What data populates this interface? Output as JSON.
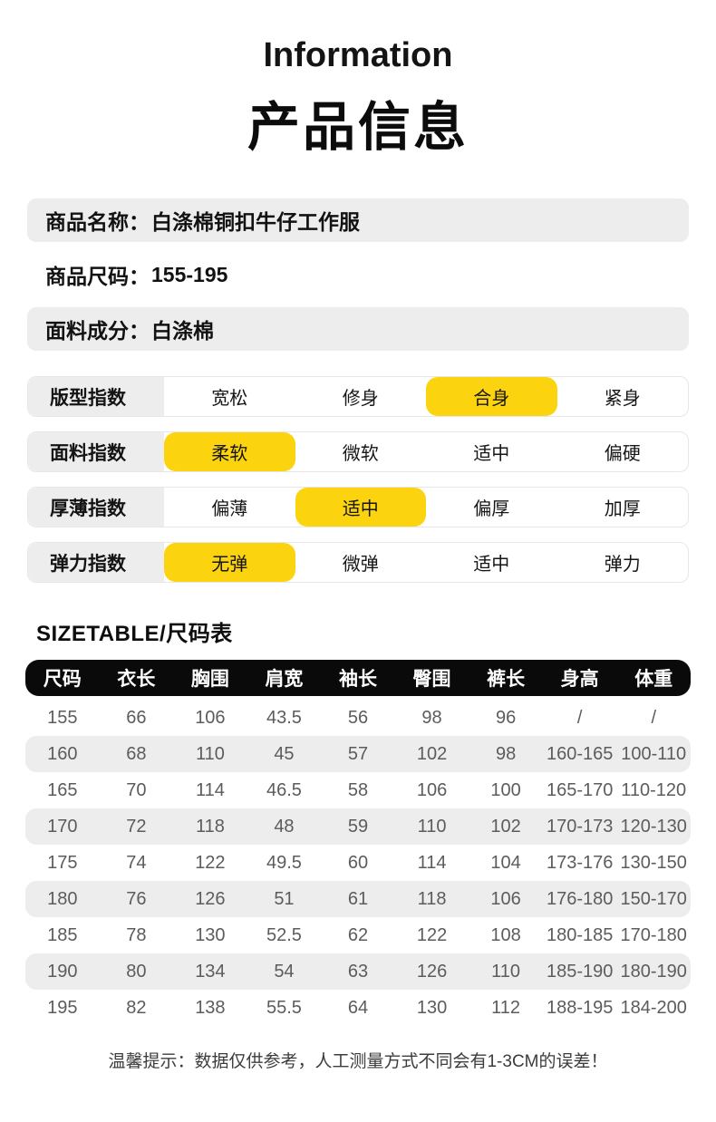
{
  "header": {
    "title_en": "Information",
    "title_cn": "产品信息"
  },
  "product_info": [
    {
      "label": "商品名称：",
      "value": "白涤棉铜扣牛仔工作服"
    },
    {
      "label": "商品尺码：",
      "value": "155-195"
    },
    {
      "label": "面料成分：",
      "value": "白涤棉"
    }
  ],
  "indices": [
    {
      "label": "版型指数",
      "options": [
        "宽松",
        "修身",
        "合身",
        "紧身"
      ],
      "selected": 2
    },
    {
      "label": "面料指数",
      "options": [
        "柔软",
        "微软",
        "适中",
        "偏硬"
      ],
      "selected": 0
    },
    {
      "label": "厚薄指数",
      "options": [
        "偏薄",
        "适中",
        "偏厚",
        "加厚"
      ],
      "selected": 1
    },
    {
      "label": "弹力指数",
      "options": [
        "无弹",
        "微弹",
        "适中",
        "弹力"
      ],
      "selected": 0
    }
  ],
  "size_table": {
    "heading": "SIZETABLE/尺码表",
    "columns": [
      "尺码",
      "衣长",
      "胸围",
      "肩宽",
      "袖长",
      "臀围",
      "裤长",
      "身高",
      "体重"
    ],
    "rows": [
      [
        "155",
        "66",
        "106",
        "43.5",
        "56",
        "98",
        "96",
        "/",
        "/"
      ],
      [
        "160",
        "68",
        "110",
        "45",
        "57",
        "102",
        "98",
        "160-165",
        "100-110"
      ],
      [
        "165",
        "70",
        "114",
        "46.5",
        "58",
        "106",
        "100",
        "165-170",
        "110-120"
      ],
      [
        "170",
        "72",
        "118",
        "48",
        "59",
        "110",
        "102",
        "170-173",
        "120-130"
      ],
      [
        "175",
        "74",
        "122",
        "49.5",
        "60",
        "114",
        "104",
        "173-176",
        "130-150"
      ],
      [
        "180",
        "76",
        "126",
        "51",
        "61",
        "118",
        "106",
        "176-180",
        "150-170"
      ],
      [
        "185",
        "78",
        "130",
        "52.5",
        "62",
        "122",
        "108",
        "180-185",
        "170-180"
      ],
      [
        "190",
        "80",
        "134",
        "54",
        "63",
        "126",
        "110",
        "185-190",
        "180-190"
      ],
      [
        "195",
        "82",
        "138",
        "55.5",
        "64",
        "130",
        "112",
        "188-195",
        "184-200"
      ]
    ]
  },
  "footer_note": "温馨提示：数据仅供参考，人工测量方式不同会有1-3CM的误差！",
  "colors": {
    "highlight_yellow": "#FBD30E",
    "shade_gray": "#EDEDED",
    "header_black": "#0A0A0A",
    "table_text": "#5C5C5C"
  }
}
